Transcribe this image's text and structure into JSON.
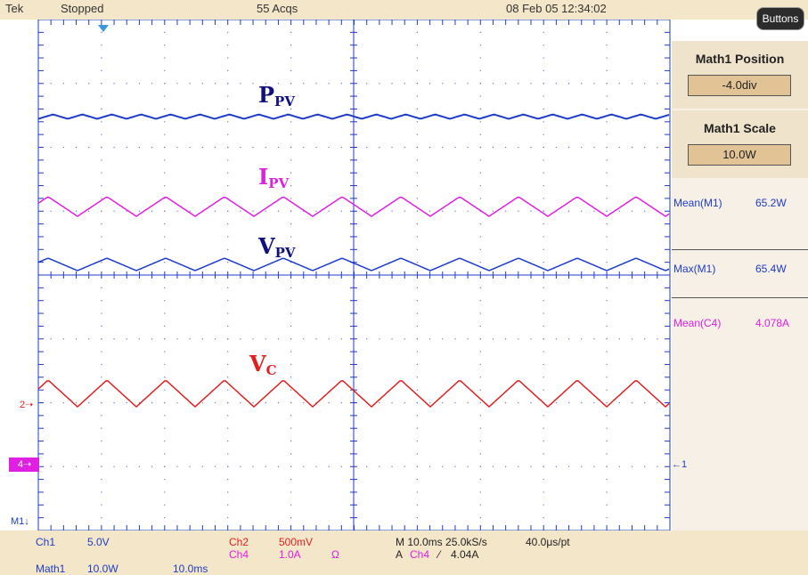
{
  "header": {
    "brand": "Tek",
    "state": "Stopped",
    "acqs": "55 Acqs",
    "datetime": "08 Feb 05 12:34:02",
    "buttons_label": "Buttons"
  },
  "side_menu": {
    "math_position": {
      "title": "Math1 Position",
      "value": "-4.0div"
    },
    "math_scale": {
      "title": "Math1 Scale",
      "value": "10.0W"
    }
  },
  "measurements": [
    {
      "label": "Mean(M1)",
      "value": "65.2W",
      "color": "#1e3cc8"
    },
    {
      "label": "Max(M1)",
      "value": "65.4W",
      "color": "#1e3cc8"
    },
    {
      "label": "Mean(C4)",
      "value": "4.078A",
      "color": "#e020e0"
    }
  ],
  "trace_labels": {
    "ppv": {
      "main": "P",
      "sub": "PV",
      "color": "#101080"
    },
    "ipv": {
      "main": "I",
      "sub": "PV",
      "color": "#e020e0"
    },
    "vpv": {
      "main": "V",
      "sub": "PV",
      "color": "#101080"
    },
    "vc": {
      "main": "V",
      "sub": "C",
      "color": "#e02020"
    }
  },
  "markers": {
    "ch2": "2",
    "ch4": "4",
    "math": "M1",
    "ch1": "1"
  },
  "footer": {
    "ch1": {
      "name": "Ch1",
      "scale": "5.0V"
    },
    "ch2": {
      "name": "Ch2",
      "scale": "500mV"
    },
    "ch4": {
      "name": "Ch4",
      "scale": "1.0A",
      "unit": "Ω"
    },
    "math": {
      "name": "Math1",
      "scale": "10.0W",
      "time": "10.0ms"
    },
    "timebase": "M 10.0ms 25.0kS/s",
    "record": "40.0μs/pt",
    "trigger": {
      "prefix": "A",
      "source": "Ch4",
      "slope": "⁄",
      "level": "4.04A"
    }
  },
  "colors": {
    "ch1": "#1e3cc8",
    "ch2": "#e02020",
    "ch4": "#e020e0",
    "grid": "#1e3cc8",
    "panel": "#f0e3cc"
  }
}
